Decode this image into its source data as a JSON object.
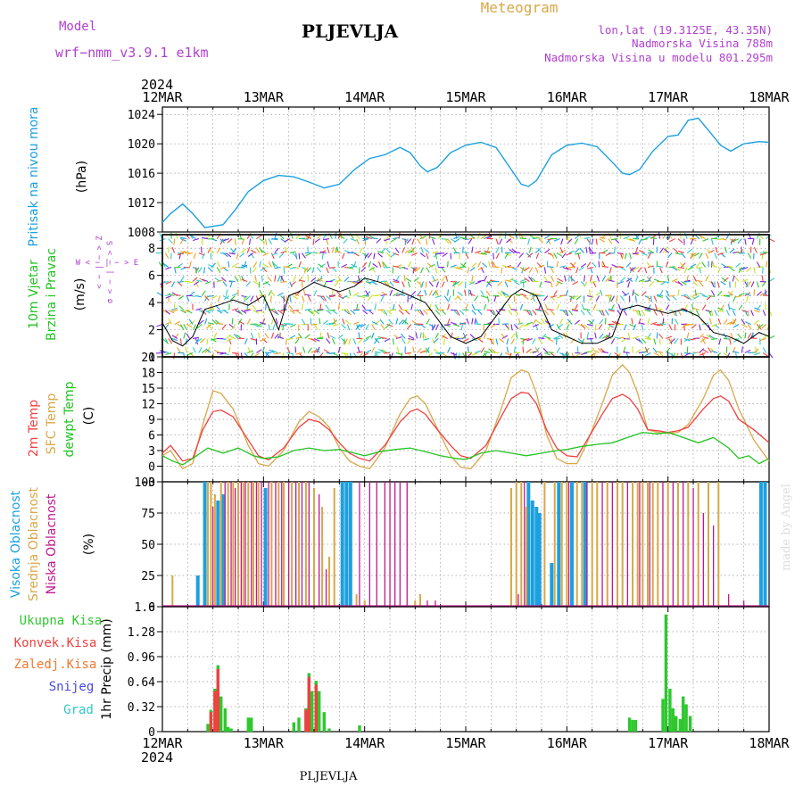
{
  "header": {
    "model_label": "Model",
    "model_name": "wrf−nmm_v3.9.1  e1km",
    "station_title": "PLJEVLJA",
    "meteogram_label": "Meteogram",
    "lonlat": "lon,lat (19.3125E, 43.35N)",
    "altitude": "Nadmorska Visina 788m",
    "model_altitude": "Nadmorska Visina u modelu 801.295m",
    "footer_station": "PLJEVLJA",
    "watermark": "made by Angel"
  },
  "colors": {
    "pressure": "#1ca0e0",
    "temp2m": "#f04040",
    "sfc_temp": "#d8a848",
    "dewpoint": "#22c422",
    "high_cloud": "#1ca0e0",
    "mid_cloud": "#d8a848",
    "low_cloud": "#c01890",
    "total_precip": "#2ec82e",
    "convective": "#f04040",
    "frozen": "#f07830",
    "snow": "#4848e0",
    "hail": "#30c8c8",
    "wind_speed": "#000000",
    "axis_title_purple": "#b040d0"
  },
  "time_axis": {
    "year": "2024",
    "labels": [
      "12MAR",
      "13MAR",
      "14MAR",
      "15MAR",
      "16MAR",
      "17MAR",
      "18MAR"
    ],
    "start_day": 12,
    "end_day": 18
  },
  "panels": {
    "pressure": {
      "title": "Pritisak na nivou mora",
      "unit": "(hPa)",
      "ylim": [
        1008,
        1025
      ],
      "ticks": [
        "1008",
        "1012",
        "1016",
        "1020",
        "1024"
      ]
    },
    "wind": {
      "title_line1": "10m Vjetar",
      "title_line2": "Brzina i Pravac",
      "unit": "(m/s)",
      "ylim": [
        0,
        9
      ],
      "ticks": [
        "0",
        "2",
        "4",
        "6",
        "8"
      ],
      "compass_top": "< − | − > Z",
      "compass_mid": "W  < − | − >  E",
      "compass_bottom": "σ < − | − > S"
    },
    "temperature": {
      "title_temp2m": "2m Temp",
      "title_sfc": "SFC Temp",
      "title_dew": "dewpt Temp",
      "unit": "(C)",
      "ylim": [
        -3,
        21
      ],
      "ticks": [
        "−3",
        "0",
        "3",
        "6",
        "9",
        "12",
        "15",
        "18",
        "21"
      ]
    },
    "cloud": {
      "title_high": "Visoka Oblacnost",
      "title_mid": "Srednja Oblacnost",
      "title_low": "Niska Oblacnost",
      "unit": "(%)",
      "ylim": [
        0,
        100
      ],
      "ticks": [
        "0",
        "25",
        "50",
        "75",
        "100"
      ]
    },
    "precip": {
      "legend": [
        "Ukupna Kisa",
        "Konvek.Kisa",
        "Zaledj.Kisa",
        "Snijeg",
        "Grad"
      ],
      "unit": "1hr Precip (mm)",
      "ylim": [
        0,
        1.6
      ],
      "ticks": [
        "0",
        "0.32",
        "0.64",
        "0.96",
        "1.28",
        "1.6"
      ]
    }
  },
  "chart_data": [
    {
      "type": "line",
      "title": "Pritisak na nivou mora",
      "ylabel": "(hPa)",
      "ylim": [
        1008,
        1025
      ],
      "x_unit": "day of March 2024",
      "series": [
        {
          "name": "Pritisak na nivou mora",
          "x": [
            12.0,
            12.08,
            12.2,
            12.3,
            12.42,
            12.6,
            12.72,
            12.85,
            13.0,
            13.15,
            13.3,
            13.45,
            13.6,
            13.75,
            13.9,
            14.05,
            14.2,
            14.35,
            14.45,
            14.55,
            14.62,
            14.72,
            14.85,
            15.0,
            15.15,
            15.3,
            15.45,
            15.55,
            15.62,
            15.7,
            15.85,
            16.0,
            16.15,
            16.3,
            16.45,
            16.55,
            16.62,
            16.72,
            16.85,
            17.0,
            17.1,
            17.2,
            17.3,
            17.42,
            17.52,
            17.62,
            17.75,
            17.9,
            18.0
          ],
          "values": [
            1009.3,
            1010.5,
            1011.8,
            1010.5,
            1008.6,
            1009.0,
            1011.0,
            1013.5,
            1015.0,
            1015.7,
            1015.5,
            1014.8,
            1014.0,
            1014.5,
            1016.5,
            1018.0,
            1018.5,
            1019.5,
            1018.8,
            1017.0,
            1016.2,
            1016.8,
            1018.8,
            1019.8,
            1020.2,
            1019.5,
            1016.5,
            1014.5,
            1014.2,
            1015.0,
            1018.5,
            1019.8,
            1020.1,
            1019.6,
            1017.5,
            1016.0,
            1015.8,
            1016.5,
            1019.0,
            1021.0,
            1021.2,
            1023.2,
            1023.5,
            1021.5,
            1019.8,
            1019.0,
            1020.0,
            1020.3,
            1020.2
          ]
        }
      ]
    },
    {
      "type": "line",
      "title": "10m Vjetar Brzina i Pravac",
      "ylabel": "(m/s)",
      "ylim": [
        0,
        9
      ],
      "x_unit": "day of March 2024",
      "series": [
        {
          "name": "10m Vjetar",
          "x": [
            12.0,
            12.1,
            12.2,
            12.3,
            12.42,
            12.55,
            12.7,
            12.85,
            13.0,
            13.15,
            13.25,
            13.35,
            13.5,
            13.6,
            13.75,
            13.9,
            14.0,
            14.15,
            14.3,
            14.45,
            14.6,
            14.7,
            14.85,
            15.0,
            15.15,
            15.3,
            15.45,
            15.55,
            15.7,
            15.85,
            16.0,
            16.15,
            16.3,
            16.45,
            16.55,
            16.7,
            16.85,
            17.0,
            17.15,
            17.3,
            17.45,
            17.6,
            17.75,
            17.9,
            18.0
          ],
          "values": [
            2.5,
            1.2,
            0.8,
            1.5,
            3.5,
            3.8,
            4.2,
            3.8,
            4.5,
            2.0,
            4.5,
            4.8,
            5.5,
            5.2,
            4.8,
            5.2,
            5.8,
            5.5,
            5.0,
            4.5,
            4.0,
            3.0,
            1.5,
            1.0,
            1.5,
            3.0,
            4.5,
            5.0,
            4.5,
            2.0,
            1.5,
            1.0,
            1.0,
            1.5,
            3.5,
            3.8,
            3.5,
            3.2,
            3.5,
            3.0,
            1.8,
            1.5,
            1.0,
            1.8,
            1.5
          ]
        }
      ]
    },
    {
      "type": "line",
      "title": "2m Temp / SFC Temp / dewpt Temp",
      "ylabel": "(C)",
      "ylim": [
        -3,
        21
      ],
      "x_unit": "day of March 2024",
      "series": [
        {
          "name": "2m Temp",
          "x": [
            12.0,
            12.08,
            12.2,
            12.3,
            12.4,
            12.5,
            12.58,
            12.7,
            12.85,
            12.95,
            13.05,
            13.2,
            13.35,
            13.45,
            13.55,
            13.65,
            13.75,
            13.85,
            13.95,
            14.05,
            14.2,
            14.35,
            14.45,
            14.52,
            14.6,
            14.7,
            14.85,
            14.95,
            15.05,
            15.2,
            15.35,
            15.45,
            15.55,
            15.62,
            15.7,
            15.8,
            15.9,
            16.0,
            16.1,
            16.2,
            16.35,
            16.45,
            16.55,
            16.62,
            16.7,
            16.8,
            16.9,
            17.0,
            17.1,
            17.2,
            17.35,
            17.45,
            17.52,
            17.6,
            17.7,
            17.85,
            18.0
          ],
          "values": [
            2.5,
            4.0,
            1.0,
            1.5,
            7.0,
            10.5,
            10.8,
            9.5,
            5.0,
            2.0,
            1.2,
            3.5,
            7.5,
            9.0,
            8.5,
            7.0,
            4.5,
            2.5,
            1.5,
            1.0,
            4.0,
            8.5,
            10.5,
            11.0,
            10.0,
            7.5,
            4.0,
            2.0,
            1.5,
            4.0,
            9.5,
            13.0,
            14.2,
            14.0,
            12.0,
            7.0,
            3.5,
            2.0,
            1.8,
            5.0,
            10.0,
            13.0,
            13.8,
            13.0,
            11.0,
            7.0,
            6.8,
            6.5,
            6.8,
            7.5,
            11.0,
            13.0,
            13.5,
            12.5,
            9.0,
            7.0,
            4.5
          ]
        },
        {
          "name": "SFC Temp",
          "x": [
            12.0,
            12.08,
            12.2,
            12.3,
            12.4,
            12.5,
            12.58,
            12.7,
            12.85,
            12.95,
            13.05,
            13.2,
            13.35,
            13.45,
            13.55,
            13.65,
            13.75,
            13.85,
            13.95,
            14.05,
            14.2,
            14.35,
            14.45,
            14.52,
            14.6,
            14.7,
            14.85,
            14.95,
            15.05,
            15.2,
            15.35,
            15.45,
            15.55,
            15.62,
            15.7,
            15.8,
            15.9,
            16.0,
            16.1,
            16.2,
            16.35,
            16.45,
            16.55,
            16.62,
            16.7,
            16.8,
            16.9,
            17.0,
            17.1,
            17.2,
            17.35,
            17.45,
            17.52,
            17.6,
            17.7,
            17.85,
            18.0
          ],
          "values": [
            2.0,
            3.0,
            -0.5,
            0.5,
            8.0,
            14.5,
            14.0,
            11.0,
            4.0,
            0.5,
            0.0,
            3.0,
            8.5,
            10.5,
            9.5,
            7.5,
            3.5,
            1.0,
            0.0,
            -0.5,
            3.5,
            10.0,
            13.0,
            13.5,
            12.0,
            8.0,
            2.0,
            -0.2,
            -0.5,
            3.0,
            11.0,
            17.0,
            18.5,
            18.0,
            14.0,
            6.0,
            1.5,
            0.5,
            0.5,
            4.5,
            12.0,
            17.5,
            19.5,
            18.0,
            14.0,
            7.0,
            6.5,
            6.3,
            6.5,
            8.0,
            13.0,
            17.5,
            18.5,
            16.5,
            11.0,
            5.0,
            1.0
          ]
        },
        {
          "name": "dewpt Temp",
          "x": [
            12.0,
            12.1,
            12.2,
            12.3,
            12.45,
            12.6,
            12.75,
            12.9,
            13.0,
            13.15,
            13.3,
            13.45,
            13.6,
            13.75,
            13.9,
            14.0,
            14.15,
            14.3,
            14.45,
            14.6,
            14.75,
            14.9,
            15.0,
            15.15,
            15.3,
            15.45,
            15.6,
            15.75,
            15.9,
            16.0,
            16.15,
            16.3,
            16.45,
            16.6,
            16.75,
            16.9,
            17.0,
            17.15,
            17.3,
            17.45,
            17.6,
            17.7,
            17.8,
            17.9,
            18.0
          ],
          "values": [
            2.0,
            1.0,
            0.3,
            1.5,
            3.5,
            2.5,
            3.5,
            2.0,
            1.5,
            1.8,
            3.0,
            3.5,
            3.0,
            3.2,
            2.5,
            2.0,
            2.8,
            3.2,
            3.5,
            2.8,
            2.0,
            1.5,
            1.3,
            2.5,
            3.0,
            2.5,
            2.0,
            2.5,
            3.0,
            3.2,
            3.8,
            4.2,
            4.5,
            5.5,
            6.5,
            6.2,
            6.5,
            5.5,
            4.5,
            5.5,
            3.5,
            1.5,
            2.0,
            0.5,
            1.5
          ]
        }
      ]
    },
    {
      "type": "bar",
      "title": "Visoka / Srednja / Niska Oblacnost",
      "ylabel": "(%)",
      "ylim": [
        0,
        100
      ],
      "x_unit": "day of March 2024",
      "series": [
        {
          "name": "Visoka Oblacnost",
          "x": [
            12.35,
            12.42,
            12.55,
            12.6,
            13.02,
            13.78,
            13.82,
            13.86,
            15.62,
            15.66,
            15.7,
            15.73,
            15.85,
            15.92,
            16.05,
            16.18,
            17.92,
            17.96
          ],
          "values": [
            25,
            100,
            85,
            90,
            95,
            100,
            100,
            100,
            100,
            85,
            80,
            75,
            35,
            100,
            100,
            100,
            100,
            100
          ]
        },
        {
          "name": "Srednja Oblacnost",
          "x": [
            12.1,
            12.45,
            12.48,
            12.52,
            12.58,
            12.65,
            12.7,
            12.75,
            12.8,
            12.85,
            12.9,
            12.95,
            13.08,
            13.15,
            13.2,
            13.28,
            13.35,
            13.42,
            13.5,
            13.58,
            13.65,
            13.7,
            13.92,
            14.0,
            14.5,
            14.55,
            15.45,
            15.5,
            15.55,
            15.6,
            15.78,
            15.88,
            15.95,
            16.0,
            16.1,
            16.15,
            16.25,
            16.3,
            16.4,
            16.5,
            16.55,
            16.65,
            16.7,
            16.75,
            16.8,
            16.85,
            16.9,
            17.0,
            17.1,
            17.2,
            17.3,
            17.4,
            17.5
          ],
          "values": [
            25,
            100,
            100,
            90,
            100,
            100,
            100,
            100,
            100,
            100,
            100,
            100,
            100,
            100,
            100,
            100,
            100,
            100,
            95,
            80,
            40,
            95,
            10,
            5,
            5,
            10,
            95,
            100,
            100,
            80,
            100,
            100,
            100,
            100,
            100,
            100,
            100,
            100,
            100,
            100,
            100,
            100,
            100,
            100,
            100,
            100,
            100,
            100,
            100,
            100,
            100,
            100,
            100
          ]
        },
        {
          "name": "Niska Oblacnost",
          "x": [
            12.5,
            12.62,
            12.68,
            12.72,
            12.78,
            12.82,
            12.88,
            12.93,
            12.98,
            13.05,
            13.12,
            13.18,
            13.25,
            13.32,
            13.38,
            13.45,
            13.55,
            13.62,
            13.95,
            14.05,
            14.12,
            14.2,
            14.25,
            14.3,
            14.35,
            14.42,
            14.62,
            14.7,
            15.52,
            15.58,
            16.02,
            16.2,
            16.35,
            16.45,
            16.6,
            16.72,
            16.82,
            16.95,
            17.05,
            17.15,
            17.25,
            17.35,
            17.45,
            17.6,
            17.75
          ],
          "values": [
            80,
            100,
            100,
            95,
            100,
            100,
            100,
            100,
            100,
            100,
            100,
            100,
            100,
            100,
            100,
            100,
            90,
            30,
            100,
            100,
            100,
            100,
            100,
            100,
            100,
            100,
            5,
            5,
            10,
            100,
            100,
            100,
            100,
            100,
            100,
            100,
            100,
            100,
            100,
            100,
            95,
            75,
            65,
            10,
            5
          ]
        }
      ]
    },
    {
      "type": "bar",
      "title": "1hr Precip",
      "ylabel": "1hr Precip (mm)",
      "ylim": [
        0,
        1.6
      ],
      "x_unit": "day of March 2024",
      "series": [
        {
          "name": "Ukupna Kisa",
          "x": [
            12.45,
            12.48,
            12.52,
            12.55,
            12.58,
            12.62,
            12.65,
            12.68,
            12.85,
            12.88,
            13.3,
            13.35,
            13.42,
            13.45,
            13.48,
            13.52,
            13.55,
            13.6,
            13.65,
            13.95,
            16.62,
            16.65,
            16.68,
            16.95,
            16.98,
            17.02,
            17.05,
            17.08,
            17.12,
            17.15,
            17.18,
            17.22
          ],
          "values": [
            0.1,
            0.28,
            0.55,
            0.85,
            0.45,
            0.3,
            0.06,
            0.04,
            0.18,
            0.18,
            0.12,
            0.18,
            0.3,
            0.75,
            0.52,
            0.65,
            0.52,
            0.25,
            0.04,
            0.08,
            0.18,
            0.15,
            0.15,
            0.42,
            1.5,
            0.55,
            0.3,
            0.2,
            0.16,
            0.45,
            0.35,
            0.2
          ]
        },
        {
          "name": "Konvek.Kisa",
          "x": [
            12.48,
            12.52,
            12.55,
            13.42,
            13.45,
            13.52
          ],
          "values": [
            0.25,
            0.52,
            0.8,
            0.28,
            0.7,
            0.6
          ]
        },
        {
          "name": "Zaledj.Kisa",
          "x": [],
          "values": []
        },
        {
          "name": "Snijeg",
          "x": [],
          "values": []
        },
        {
          "name": "Grad",
          "x": [],
          "values": []
        }
      ]
    }
  ]
}
